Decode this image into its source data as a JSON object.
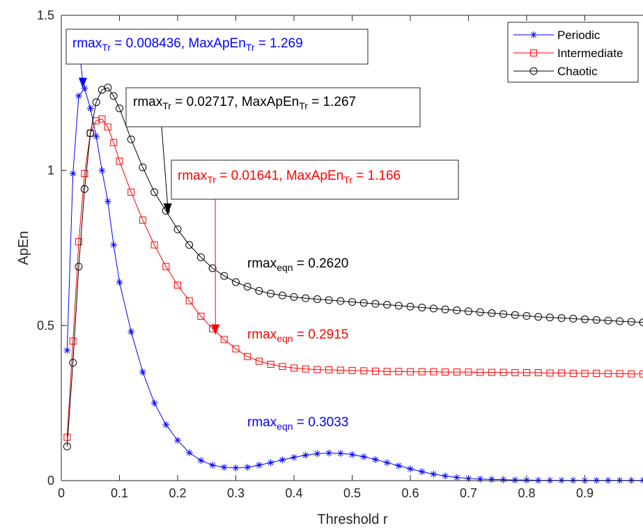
{
  "chart_data": {
    "type": "line",
    "xlabel": "Threshold r",
    "ylabel": "ApEn",
    "xlim": [
      0,
      1
    ],
    "ylim": [
      0,
      1.5
    ],
    "xticks": [
      0,
      0.1,
      0.2,
      0.3,
      0.4,
      0.5,
      0.6,
      0.7,
      0.8,
      0.9
    ],
    "xtick_labels": [
      "0",
      "0.1",
      "0.2",
      "0.3",
      "0.4",
      "0.5",
      "0.6",
      "0.7",
      "0.8",
      "0.9"
    ],
    "yticks": [
      0,
      0.5,
      1,
      1.5
    ],
    "ytick_labels": [
      "0",
      "0.5",
      "1",
      "1.5"
    ],
    "grid": false,
    "legend_position": "top-right",
    "x": [
      0.01,
      0.02,
      0.03,
      0.04,
      0.05,
      0.06,
      0.07,
      0.08,
      0.09,
      0.1,
      0.12,
      0.14,
      0.16,
      0.18,
      0.2,
      0.22,
      0.24,
      0.26,
      0.28,
      0.3,
      0.32,
      0.34,
      0.36,
      0.38,
      0.4,
      0.42,
      0.44,
      0.46,
      0.48,
      0.5,
      0.52,
      0.54,
      0.56,
      0.58,
      0.6,
      0.62,
      0.64,
      0.66,
      0.68,
      0.7,
      0.72,
      0.74,
      0.76,
      0.78,
      0.8,
      0.82,
      0.84,
      0.86,
      0.88,
      0.9,
      0.92,
      0.94,
      0.96,
      0.98,
      1.0
    ],
    "series": [
      {
        "name": "Periodic",
        "color": "#0000ff",
        "marker": "asterisk",
        "values": [
          0.42,
          0.99,
          1.24,
          1.265,
          1.2,
          1.11,
          1.0,
          0.9,
          0.76,
          0.64,
          0.48,
          0.35,
          0.25,
          0.18,
          0.13,
          0.09,
          0.065,
          0.05,
          0.043,
          0.041,
          0.043,
          0.05,
          0.058,
          0.067,
          0.075,
          0.082,
          0.087,
          0.089,
          0.088,
          0.084,
          0.077,
          0.068,
          0.058,
          0.048,
          0.038,
          0.029,
          0.021,
          0.015,
          0.01,
          0.007,
          0.005,
          0.004,
          0.003,
          0.002,
          0.002,
          0.001,
          0.001,
          0.001,
          0.001,
          0.001,
          0.001,
          0.001,
          0.001,
          0.001,
          0.001
        ]
      },
      {
        "name": "Intermediate",
        "color": "#ff0000",
        "marker": "square",
        "values": [
          0.14,
          0.45,
          0.77,
          0.99,
          1.12,
          1.16,
          1.166,
          1.14,
          1.09,
          1.03,
          0.93,
          0.84,
          0.76,
          0.69,
          0.63,
          0.58,
          0.53,
          0.49,
          0.455,
          0.425,
          0.4,
          0.385,
          0.375,
          0.368,
          0.363,
          0.36,
          0.358,
          0.357,
          0.356,
          0.355,
          0.354,
          0.353,
          0.352,
          0.352,
          0.351,
          0.351,
          0.351,
          0.35,
          0.35,
          0.35,
          0.349,
          0.349,
          0.349,
          0.348,
          0.348,
          0.348,
          0.347,
          0.347,
          0.346,
          0.346,
          0.346,
          0.345,
          0.345,
          0.344,
          0.344
        ]
      },
      {
        "name": "Chaotic",
        "color": "#000000",
        "marker": "circle",
        "values": [
          0.11,
          0.38,
          0.69,
          0.94,
          1.12,
          1.22,
          1.26,
          1.267,
          1.24,
          1.2,
          1.1,
          1.01,
          0.93,
          0.87,
          0.81,
          0.76,
          0.72,
          0.685,
          0.66,
          0.64,
          0.625,
          0.612,
          0.603,
          0.597,
          0.592,
          0.588,
          0.585,
          0.582,
          0.579,
          0.576,
          0.573,
          0.57,
          0.567,
          0.564,
          0.561,
          0.558,
          0.555,
          0.552,
          0.549,
          0.546,
          0.543,
          0.54,
          0.537,
          0.534,
          0.531,
          0.528,
          0.526,
          0.524,
          0.522,
          0.52,
          0.518,
          0.516,
          0.514,
          0.512,
          0.51
        ]
      }
    ],
    "annotations": [
      {
        "main": "rmax",
        "sub": "Tr",
        "mid": " = 0.008436, MaxApEn",
        "sub2": "Tr",
        "tail": " = 1.269",
        "color": "#0000ff",
        "boxed": true,
        "arrow_to": [
          0.037,
          1.265
        ]
      },
      {
        "main": "rmax",
        "sub": "Tr",
        "mid": " = 0.02717, MaxApEn",
        "sub2": "Tr",
        "tail": " = 1.267",
        "color": "#000000",
        "boxed": true,
        "arrow_to": [
          0.183,
          0.86
        ]
      },
      {
        "main": "rmax",
        "sub": "Tr",
        "mid": " = 0.01641, MaxApEn",
        "sub2": "Tr",
        "tail": " = 1.166",
        "color": "#ff0000",
        "boxed": true,
        "arrow_to": [
          0.265,
          0.47
        ]
      },
      {
        "main": "rmax",
        "sub": "eqn",
        "mid": " = 0.2620",
        "color": "#000000",
        "boxed": false
      },
      {
        "main": "rmax",
        "sub": "eqn",
        "mid": " = 0.2915",
        "color": "#ff0000",
        "boxed": false
      },
      {
        "main": "rmax",
        "sub": "eqn",
        "mid": " = 0.3033",
        "color": "#0000ff",
        "boxed": false
      }
    ]
  }
}
